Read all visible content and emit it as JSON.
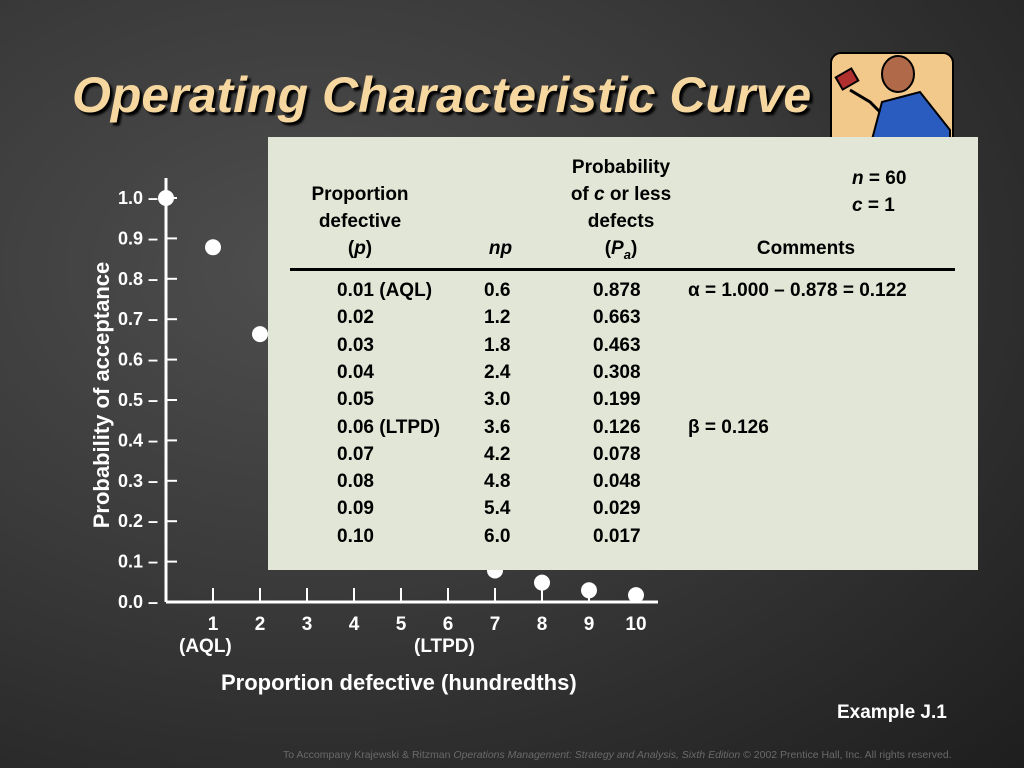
{
  "title": "Operating Characteristic Curve",
  "chart_data": {
    "type": "scatter",
    "xlabel": "Proportion defective (hundredths)",
    "ylabel": "Probability of acceptance",
    "xlim": [
      0,
      10
    ],
    "ylim": [
      0,
      1.0
    ],
    "x_ticks": [
      1,
      2,
      3,
      4,
      5,
      6,
      7,
      8,
      9,
      10
    ],
    "y_ticks": [
      "0.0",
      "0.1",
      "0.2",
      "0.3",
      "0.4",
      "0.5",
      "0.6",
      "0.7",
      "0.8",
      "0.9",
      "1.0"
    ],
    "x_annotations": [
      {
        "x": 1,
        "text": "(AQL)"
      },
      {
        "x": 6,
        "text": "(LTPD)"
      }
    ],
    "points": [
      {
        "x": 0,
        "y": 1.0
      },
      {
        "x": 1,
        "y": 0.878
      },
      {
        "x": 2,
        "y": 0.663
      },
      {
        "x": 7,
        "y": 0.078
      },
      {
        "x": 8,
        "y": 0.048
      },
      {
        "x": 9,
        "y": 0.029
      },
      {
        "x": 10,
        "y": 0.017
      }
    ],
    "grid": false
  },
  "table": {
    "headers": {
      "proportion": [
        "Proportion",
        "defective",
        "(p)"
      ],
      "np": "np",
      "probability": [
        "Probability",
        "of c or less",
        "defects",
        "(Pa)"
      ],
      "comments": "Comments"
    },
    "params": {
      "n": "60",
      "c": "1"
    },
    "rows": [
      {
        "p": "0.01 (AQL)",
        "np": "0.6",
        "pa": "0.878",
        "comment": "α = 1.000 – 0.878 = 0.122"
      },
      {
        "p": "0.02",
        "np": "1.2",
        "pa": "0.663",
        "comment": ""
      },
      {
        "p": "0.03",
        "np": "1.8",
        "pa": "0.463",
        "comment": ""
      },
      {
        "p": "0.04",
        "np": "2.4",
        "pa": "0.308",
        "comment": ""
      },
      {
        "p": "0.05",
        "np": "3.0",
        "pa": "0.199",
        "comment": ""
      },
      {
        "p": "0.06 (LTPD)",
        "np": "3.6",
        "pa": "0.126",
        "comment": "β = 0.126"
      },
      {
        "p": "0.07",
        "np": "4.2",
        "pa": "0.078",
        "comment": ""
      },
      {
        "p": "0.08",
        "np": "4.8",
        "pa": "0.048",
        "comment": ""
      },
      {
        "p": "0.09",
        "np": "5.4",
        "pa": "0.029",
        "comment": ""
      },
      {
        "p": "0.10",
        "np": "6.0",
        "pa": "0.017",
        "comment": ""
      }
    ]
  },
  "example": "Example J.1",
  "footer": {
    "prefix": "To Accompany Krajewski & Ritzman ",
    "book": "Operations Management: Strategy and Analysis, Sixth Edition",
    "suffix": " © 2002 Prentice Hall, Inc. All rights reserved."
  },
  "colors": {
    "title": "#f6d7a0",
    "panel": "#e1e6d6",
    "background": "#3a3a3a"
  }
}
